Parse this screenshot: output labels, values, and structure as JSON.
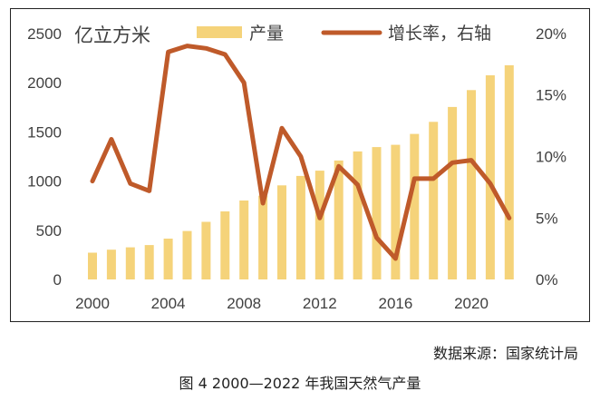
{
  "chart_data": {
    "type": "bar+line",
    "unit_label": "亿立方米",
    "categories": [
      2000,
      2001,
      2002,
      2003,
      2004,
      2005,
      2006,
      2007,
      2008,
      2009,
      2010,
      2011,
      2012,
      2013,
      2014,
      2015,
      2016,
      2017,
      2018,
      2019,
      2020,
      2021,
      2022
    ],
    "series": [
      {
        "name": "产量",
        "type": "bar",
        "axis": "left",
        "color": "#f5d37a",
        "values": [
          272,
          303,
          327,
          350,
          415,
          493,
          586,
          692,
          803,
          852,
          957,
          1053,
          1106,
          1209,
          1302,
          1346,
          1369,
          1480,
          1602,
          1754,
          1925,
          2076,
          2178
        ]
      },
      {
        "name": "增长率，右轴",
        "type": "line",
        "axis": "right",
        "color": "#bf5a2a",
        "values": [
          0.08,
          0.114,
          0.078,
          0.072,
          0.185,
          0.19,
          0.188,
          0.183,
          0.16,
          0.062,
          0.123,
          0.1,
          0.05,
          0.092,
          0.077,
          0.034,
          0.017,
          0.082,
          0.082,
          0.095,
          0.097,
          0.078,
          0.05
        ]
      }
    ],
    "y_left": {
      "min": 0,
      "max": 2500,
      "ticks": [
        "0",
        "500",
        "1000",
        "1500",
        "2000",
        "2500"
      ]
    },
    "y_right": {
      "min": 0,
      "max": 0.2,
      "ticks": [
        "0%",
        "5%",
        "10%",
        "15%",
        "20%"
      ]
    },
    "x_ticks": [
      "2000",
      "2004",
      "2008",
      "2012",
      "2016",
      "2020"
    ],
    "legend_position": "top-center",
    "grid": false
  },
  "source": "数据来源：国家统计局",
  "caption": "图 4   2000—2022 年我国天然气产量"
}
